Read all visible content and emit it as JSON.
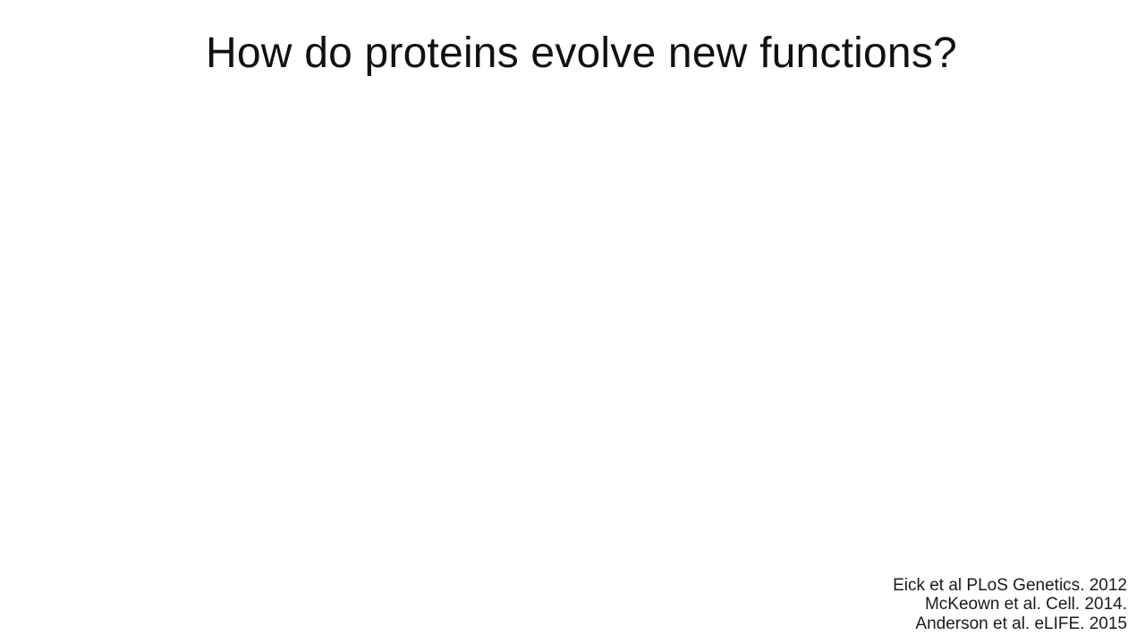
{
  "slide": {
    "title": "How do proteins evolve new functions?",
    "references": [
      "Eick et al PLoS Genetics. 2012",
      "McKeown et al. Cell. 2014.",
      "Anderson et al. eLIFE. 2015"
    ]
  }
}
